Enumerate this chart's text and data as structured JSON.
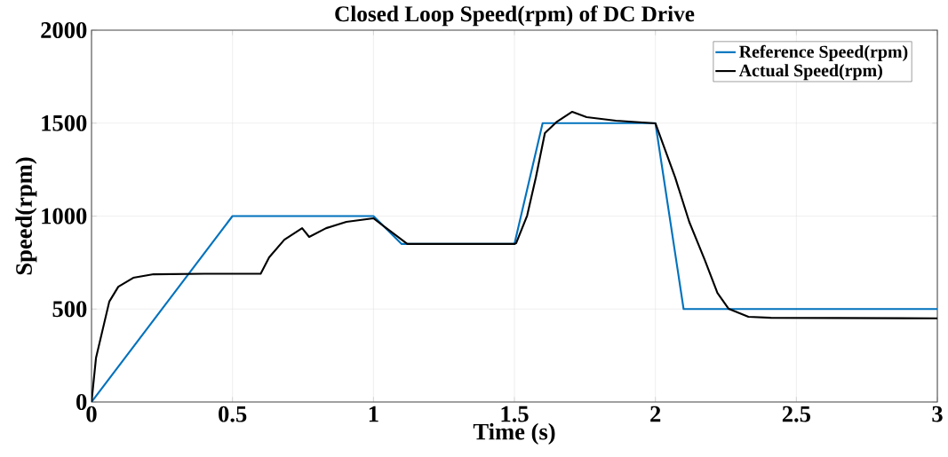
{
  "chart_data": {
    "type": "line",
    "title": "Closed Loop Speed(rpm) of DC Drive",
    "xlabel": "Time (s)",
    "ylabel": "Speed(rpm)",
    "xlim": [
      0,
      3
    ],
    "ylim": [
      0,
      2000
    ],
    "xticks": [
      0,
      0.5,
      1,
      1.5,
      2,
      2.5,
      3
    ],
    "yticks": [
      0,
      500,
      1000,
      1500,
      2000
    ],
    "grid": true,
    "legend": "top right",
    "line_style": "solid",
    "marker": "none",
    "series": [
      {
        "name": "Reference Speed(rpm)",
        "color": "#0072bd",
        "x": [
          0,
          0.5,
          1.0,
          1.1,
          1.5,
          1.6,
          2.0,
          2.1,
          3.0
        ],
        "values": [
          0,
          1000,
          1000,
          850,
          850,
          1500,
          1500,
          500,
          500
        ]
      },
      {
        "name": "Actual Speed(rpm)",
        "color": "#000000",
        "x": [
          0,
          0.016,
          0.063,
          0.095,
          0.148,
          0.22,
          0.4,
          0.6,
          0.63,
          0.684,
          0.747,
          0.772,
          0.832,
          0.904,
          1.0,
          1.05,
          1.12,
          1.3,
          1.5,
          1.506,
          1.545,
          1.576,
          1.608,
          1.651,
          1.705,
          1.756,
          1.86,
          2.0,
          2.07,
          2.12,
          2.175,
          2.22,
          2.26,
          2.33,
          2.41,
          3.0
        ],
        "values": [
          0,
          238,
          540,
          620,
          668,
          687,
          690,
          690,
          778,
          873,
          935,
          888,
          935,
          969,
          988,
          930,
          850,
          850,
          850,
          854,
          1002,
          1208,
          1446,
          1508,
          1561,
          1532,
          1513,
          1499,
          1208,
          969,
          764,
          587,
          501,
          458,
          453,
          450
        ]
      }
    ]
  }
}
